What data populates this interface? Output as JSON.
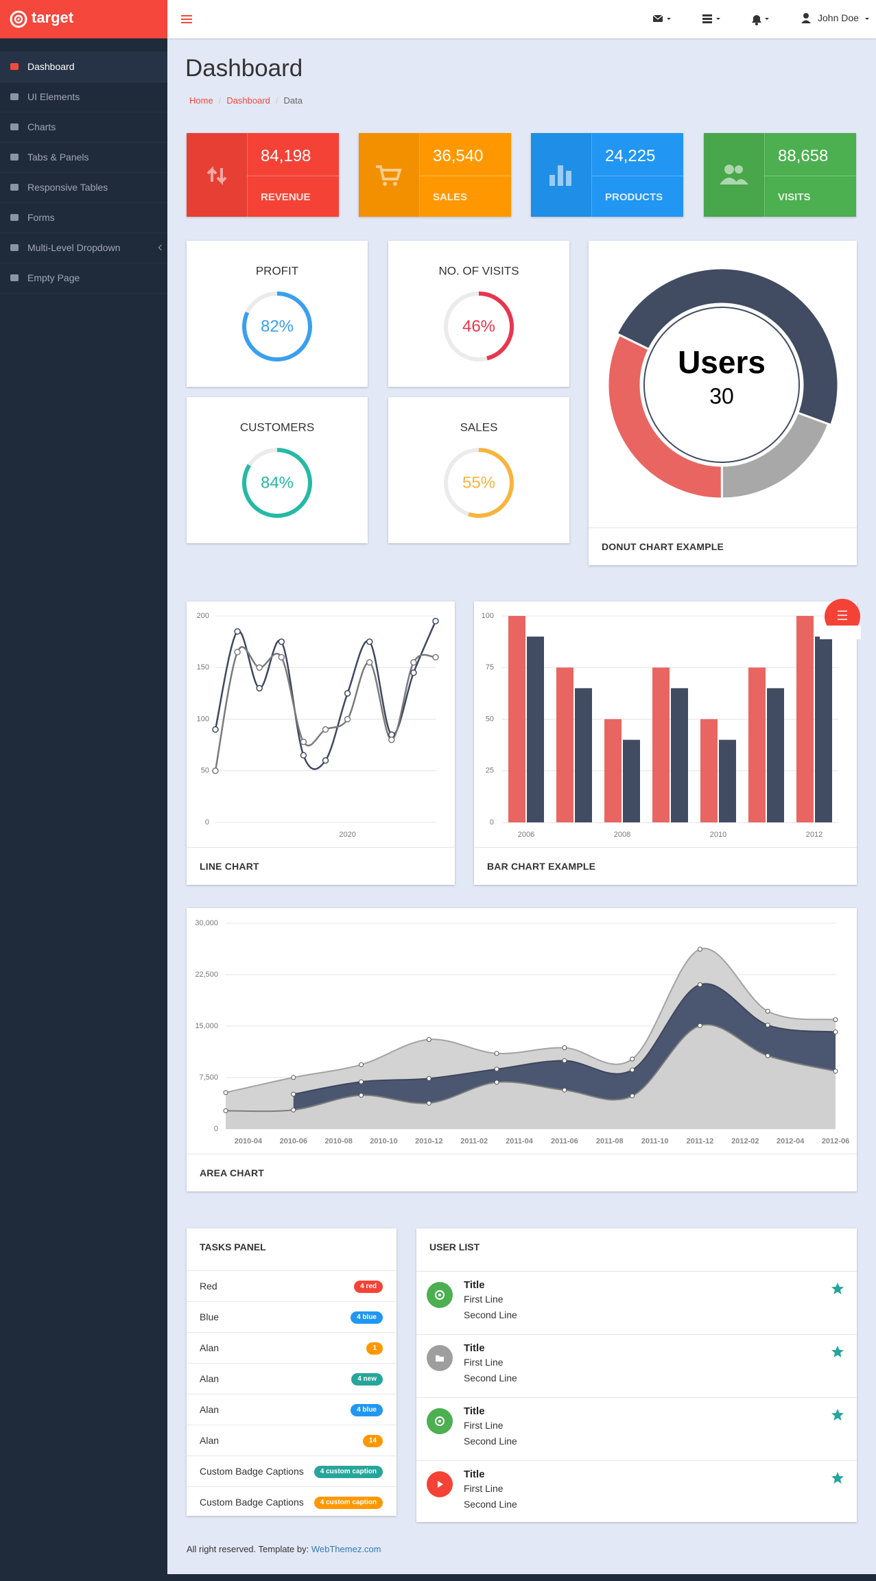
{
  "brand": "target",
  "menu": [
    "Dashboard",
    "UI Elements",
    "Charts",
    "Tabs & Panels",
    "Responsive Tables",
    "Forms",
    "Multi-Level Dropdown",
    "Empty Page"
  ],
  "user": "John Doe",
  "page_title": "Dashboard",
  "breadcrumb": [
    "Home",
    "Dashboard",
    "Data"
  ],
  "stats": [
    {
      "value": "84,198",
      "label": "REVENUE",
      "color": "#f44336"
    },
    {
      "value": "36,540",
      "label": "SALES",
      "color": "#ff9800"
    },
    {
      "value": "24,225",
      "label": "PRODUCTS",
      "color": "#2196f3"
    },
    {
      "value": "88,658",
      "label": "VISITS",
      "color": "#4caf50"
    }
  ],
  "progress": [
    {
      "title": "PROFIT",
      "value": 82,
      "value_label": "82%",
      "color": "#3a9ff0"
    },
    {
      "title": "NO. OF VISITS",
      "value": 46,
      "value_label": "46%",
      "color": "#e8364f"
    },
    {
      "title": "CUSTOMERS",
      "value": 84,
      "value_label": "84%",
      "color": "#26b9a5"
    },
    {
      "title": "SALES",
      "value": 55,
      "value_label": "55%",
      "color": "#f9b43c"
    }
  ],
  "donut": {
    "type": "donut",
    "footer": "DONUT CHART EXAMPLE",
    "segments": [
      {
        "label": "Users",
        "value": 30,
        "color": "#414b61"
      },
      {
        "value": 12,
        "color": "#a8a8a8"
      },
      {
        "value": 20,
        "color": "#e96562"
      }
    ]
  },
  "line_chart": {
    "type": "line",
    "footer": "LINE CHART",
    "categories": [
      null,
      null,
      null,
      null,
      null,
      null,
      "2020",
      null,
      null,
      null,
      null
    ],
    "series": [
      {
        "color": "#3d4760",
        "values": [
          90,
          185,
          130,
          175,
          65,
          60,
          125,
          175,
          85,
          145,
          195
        ]
      },
      {
        "color": "#7a7a7a",
        "values": [
          50,
          165,
          150,
          160,
          78,
          90,
          100,
          155,
          80,
          155,
          160
        ]
      }
    ],
    "ylim": [
      0,
      200
    ],
    "yticks": [
      0,
      50,
      100,
      150,
      200
    ],
    "grid": true
  },
  "bar_chart": {
    "type": "bar",
    "footer": "BAR CHART EXAMPLE",
    "categories": [
      "2006",
      null,
      "2008",
      null,
      "2010",
      null,
      "2012"
    ],
    "series": [
      {
        "color": "#e96562",
        "values": [
          100,
          75,
          50,
          75,
          50,
          75,
          100
        ]
      },
      {
        "color": "#414b61",
        "values": [
          90,
          65,
          40,
          65,
          40,
          65,
          90
        ]
      }
    ],
    "ylim": [
      0,
      100
    ],
    "yticks": [
      0,
      25,
      50,
      75,
      100
    ],
    "grid": true
  },
  "area_chart": {
    "type": "area",
    "footer": "AREA CHART",
    "x": [
      "2010-03",
      "2010-06",
      "2010-09",
      "2010-12",
      "2011-03",
      "2011-06",
      "2011-09",
      "2011-12",
      "2012-03",
      "2012-06"
    ],
    "series": [
      {
        "color": "#d0d0d0",
        "line_color": "#7d7d7d",
        "values": [
          2666,
          2778,
          4912,
          3767,
          6810,
          5670,
          4820,
          15073,
          10687,
          8432
        ]
      },
      {
        "color": "#4b5770",
        "line_color": "#3d465c",
        "values": [
          null,
          2294,
          1969,
          3597,
          1914,
          4293,
          3795,
          5967,
          4460,
          5713
        ]
      },
      {
        "color": "#d3d3d3",
        "line_color": "#a3a3a3",
        "values": [
          2647,
          2441,
          2501,
          5689,
          2293,
          1881,
          1588,
          5175,
          2028,
          1791
        ]
      }
    ],
    "xlim": [
      "2010-03",
      "2012-06"
    ],
    "xticks": [
      "2010-04",
      "2010-06",
      "2010-08",
      "2010-10",
      "2010-12",
      "2011-02",
      "2011-04",
      "2011-06",
      "2011-08",
      "2011-10",
      "2011-12",
      "2012-02",
      "2012-04",
      "2012-06"
    ],
    "ylim": [
      0,
      30000
    ],
    "yticks": [
      0,
      {
        "value": 7500,
        "label": "7,500"
      },
      {
        "value": 15000,
        "label": "15,000"
      },
      {
        "value": 22500,
        "label": "22,500"
      },
      {
        "value": 30000,
        "label": "30,000"
      }
    ],
    "grid": true,
    "stacked": true
  },
  "tasks": {
    "title": "TASKS PANEL",
    "items": [
      {
        "name": "Red",
        "badge": "4 red",
        "color": "#f44336"
      },
      {
        "name": "Blue",
        "badge": "4 blue",
        "color": "#2196f3"
      },
      {
        "name": "Alan",
        "badge": "1",
        "color": "#ff9800"
      },
      {
        "name": "Alan",
        "badge": "4 new",
        "color": "#26a69a"
      },
      {
        "name": "Alan",
        "badge": "4 blue",
        "color": "#2196f3"
      },
      {
        "name": "Alan",
        "badge": "14",
        "color": "#ff9800"
      },
      {
        "name": "Custom Badge Captions",
        "badge": "4 custom caption",
        "color": "#26a69a"
      },
      {
        "name": "Custom Badge Captions",
        "badge": "4 custom caption",
        "color": "#ff9800"
      }
    ]
  },
  "users": {
    "title": "USER LIST",
    "items": [
      {
        "title": "Title",
        "line1": "First Line",
        "line2": "Second Line",
        "color": "#4caf50"
      },
      {
        "title": "Title",
        "line1": "First Line",
        "line2": "Second Line",
        "color": "#9e9e9e"
      },
      {
        "title": "Title",
        "line1": "First Line",
        "line2": "Second Line",
        "color": "#4caf50"
      },
      {
        "title": "Title",
        "line1": "First Line",
        "line2": "Second Line",
        "color": "#f44336"
      }
    ]
  },
  "footer": {
    "text": "All right reserved. Template by:",
    "link": "WebThemez.com"
  }
}
